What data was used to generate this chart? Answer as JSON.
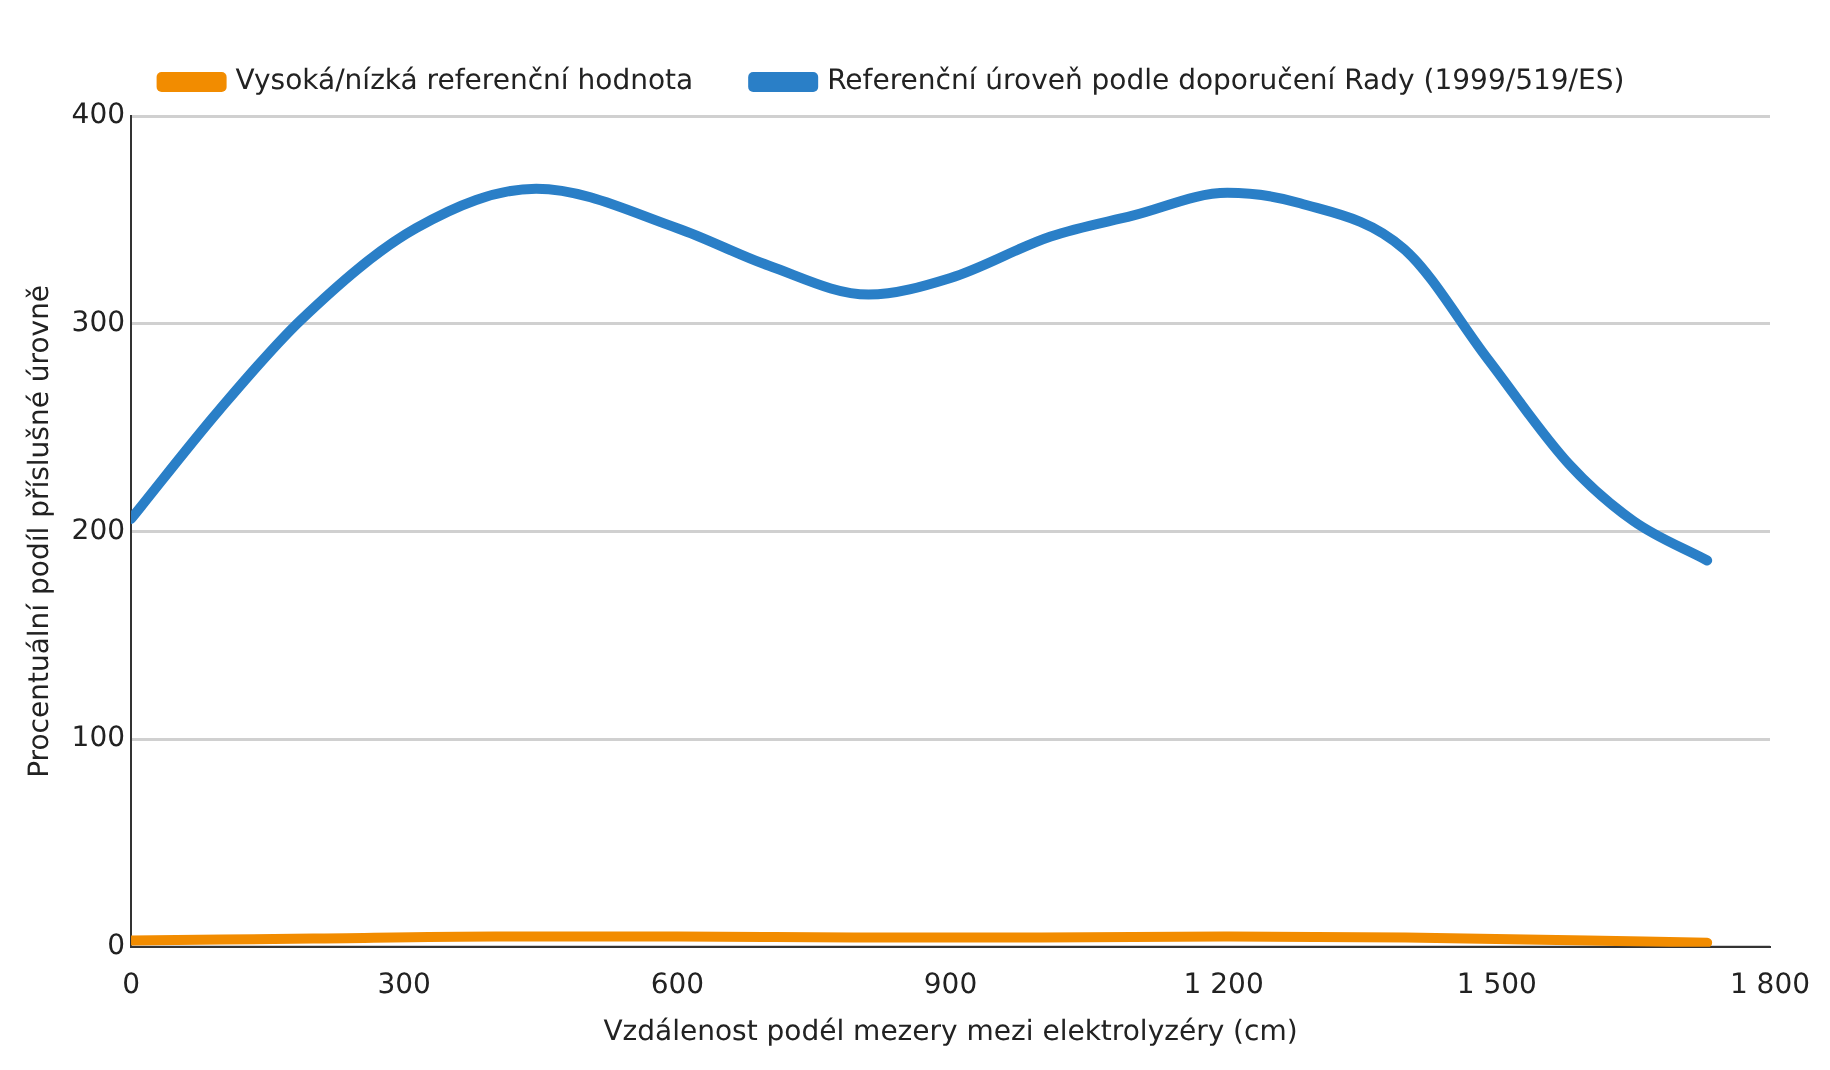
{
  "chart_data": {
    "type": "line",
    "xlabel": "Vzdálenost podél mezery mezi elektrolyzéry (cm)",
    "ylabel": "Procentuální podíl příslušné úrovně",
    "xlim": [
      0,
      1800
    ],
    "xticks": [
      0,
      300,
      600,
      900,
      {
        "value": 1200,
        "label": "1 200"
      },
      {
        "value": 1500,
        "label": "1 500"
      },
      {
        "value": 1800,
        "label": "1 800"
      }
    ],
    "ylim": [
      0,
      400
    ],
    "yticks": [
      0,
      100,
      200,
      300,
      400
    ],
    "grid": "y",
    "legend": "top",
    "marker": "none",
    "line_style": "solid",
    "series": [
      {
        "name": "Vysoká/nízká referenční hodnota",
        "color": "#f28c00",
        "x": [
          0,
          200,
          400,
          600,
          800,
          1000,
          1200,
          1400,
          1600,
          1731
        ],
        "values": [
          3,
          4,
          5,
          5,
          4.5,
          4.5,
          5,
          4.5,
          3,
          2
        ]
      },
      {
        "name": "Referenční úroveň podle doporučení Rady (1999/519/ES)",
        "color": "#2a7fc7",
        "x": [
          0,
          96,
          187,
          313,
          445,
          600,
          700,
          810,
          900,
          1010,
          1100,
          1204,
          1284,
          1398,
          1490,
          1580,
          1650,
          1731
        ],
        "values": [
          206,
          258,
          302,
          346,
          365,
          346,
          328,
          314,
          322,
          342,
          352,
          363,
          358,
          336,
          283,
          232,
          205,
          186
        ]
      }
    ]
  }
}
